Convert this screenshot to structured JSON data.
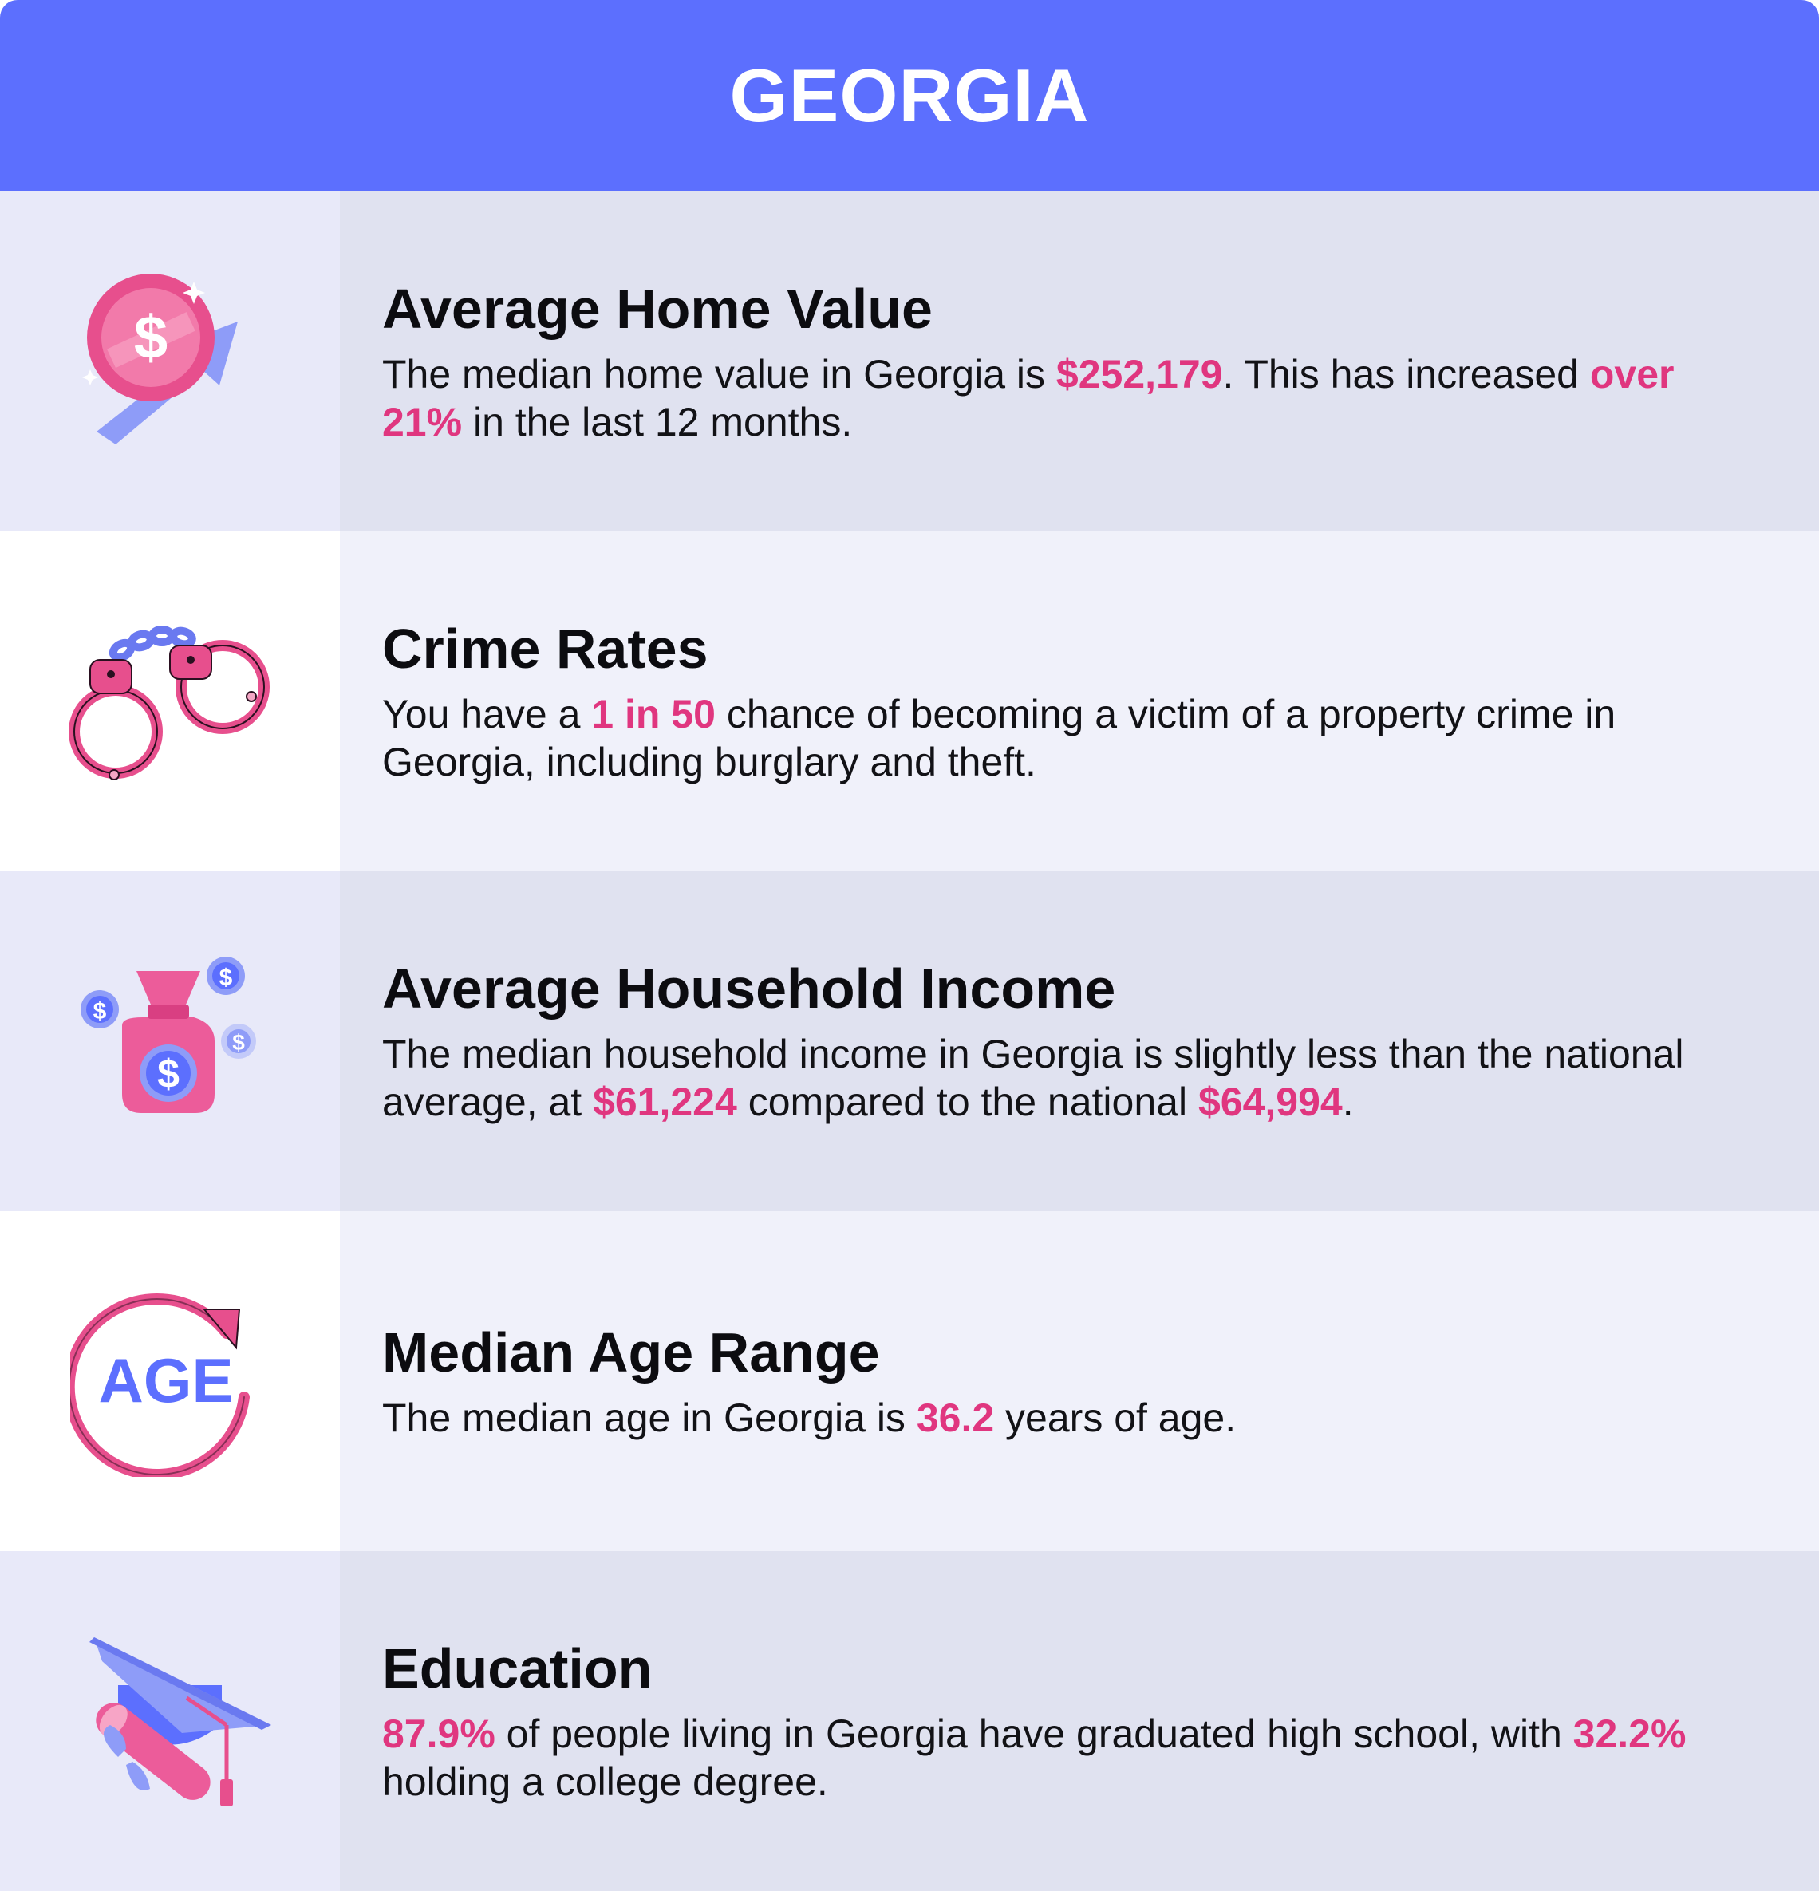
{
  "header": {
    "title": "GEORGIA"
  },
  "colors": {
    "header_bg": "#5c6ffe",
    "highlight": "#e0367f",
    "icon_pink": "#e74f8d",
    "icon_blue": "#6a79f0"
  },
  "rows": [
    {
      "icon": "coin-growth-icon",
      "title": "Average Home Value",
      "parts": [
        "The median home value in Georgia is ",
        "$252,179",
        ". This has increased ",
        "over 21%",
        " in the last 12 months."
      ]
    },
    {
      "icon": "handcuffs-icon",
      "title": "Crime Rates",
      "parts": [
        "You have a ",
        "1 in 50",
        " chance of becoming a victim of a property crime in Georgia, including burglary and theft."
      ]
    },
    {
      "icon": "money-bag-icon",
      "title": "Average Household Income",
      "parts": [
        "The median household income in Georgia is slightly less than the national average, at ",
        "$61,224",
        " compared to the national ",
        "$64,994",
        "."
      ]
    },
    {
      "icon": "age-cycle-icon",
      "icon_text": "AGE",
      "title": "Median Age Range",
      "parts": [
        "The median age in Georgia is ",
        "36.2",
        " years of age."
      ]
    },
    {
      "icon": "graduation-cap-icon",
      "title": "Education",
      "parts": [
        "87.9%",
        " of people living in Georgia have graduated high school, with ",
        "32.2%",
        " holding a college degree."
      ]
    }
  ]
}
